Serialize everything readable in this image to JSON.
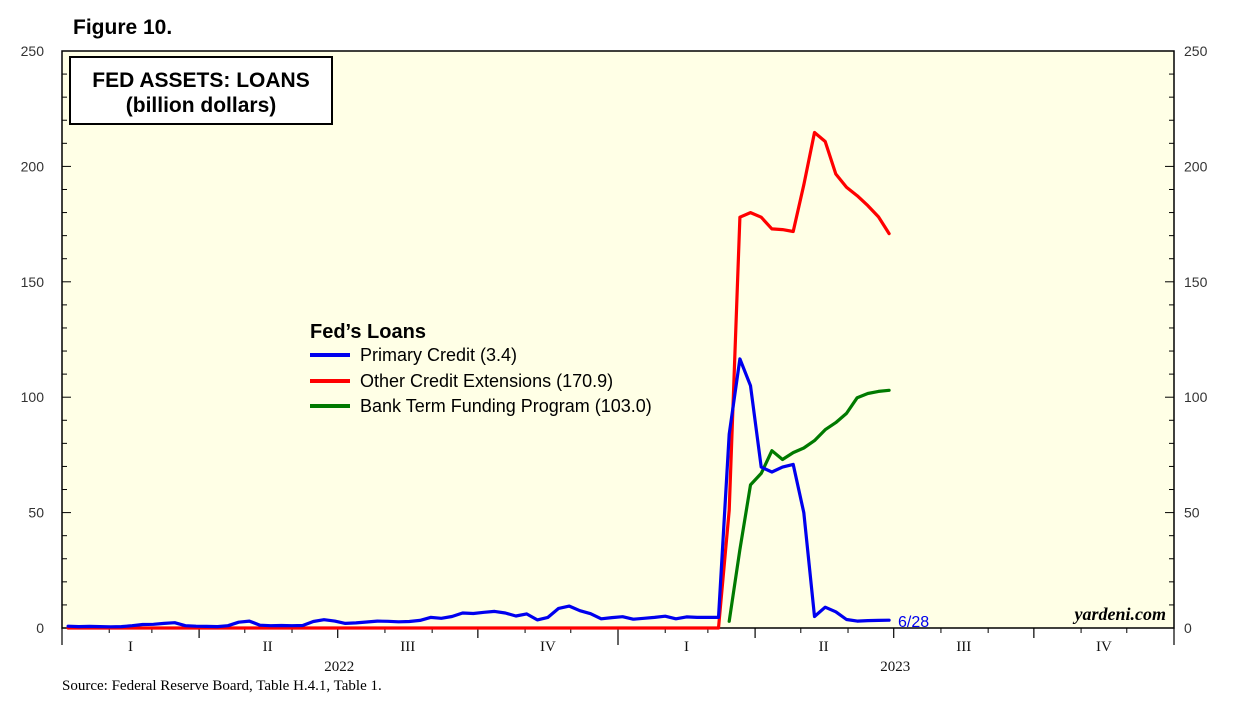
{
  "figure_label": "Figure 10.",
  "source": "Source: Federal Reserve Board, Table H.4.1, Table 1.",
  "brand": "yardeni.com",
  "colors": {
    "plot_background": "#ffffe6",
    "primary_credit": "#0000ee",
    "other_credit": "#ff0000",
    "btfp": "#007a00"
  },
  "chart_data": {
    "type": "line",
    "title": "FED ASSETS: LOANS",
    "subtitle": "(billion dollars)",
    "ylim": [
      0,
      250
    ],
    "y_ticks": [
      0,
      50,
      100,
      150,
      200,
      250
    ],
    "x_range": [
      "2022-01-01",
      "2023-12-31"
    ],
    "quarter_labels": [
      "I",
      "II",
      "III",
      "IV",
      "I",
      "II",
      "III",
      "IV"
    ],
    "year_labels": [
      "2022",
      "2023"
    ],
    "legend_title": "Fed’s Loans",
    "legend_position": "center-left",
    "end_label": "6/28",
    "series": [
      {
        "name": "Primary Credit (3.4)",
        "color_key": "primary_credit",
        "points": [
          [
            "2022-01-05",
            0.8
          ],
          [
            "2022-01-12",
            0.6
          ],
          [
            "2022-01-19",
            0.7
          ],
          [
            "2022-01-26",
            0.6
          ],
          [
            "2022-02-02",
            0.5
          ],
          [
            "2022-02-09",
            0.6
          ],
          [
            "2022-02-16",
            1.0
          ],
          [
            "2022-02-23",
            1.5
          ],
          [
            "2022-03-02",
            1.6
          ],
          [
            "2022-03-09",
            2.0
          ],
          [
            "2022-03-16",
            2.3
          ],
          [
            "2022-03-23",
            1.0
          ],
          [
            "2022-03-30",
            0.8
          ],
          [
            "2022-04-06",
            0.7
          ],
          [
            "2022-04-13",
            0.6
          ],
          [
            "2022-04-20",
            1.0
          ],
          [
            "2022-04-27",
            2.5
          ],
          [
            "2022-05-04",
            3.0
          ],
          [
            "2022-05-11",
            1.2
          ],
          [
            "2022-05-18",
            1.0
          ],
          [
            "2022-05-25",
            1.1
          ],
          [
            "2022-06-01",
            1.0
          ],
          [
            "2022-06-08",
            1.1
          ],
          [
            "2022-06-15",
            2.8
          ],
          [
            "2022-06-22",
            3.6
          ],
          [
            "2022-06-29",
            3.0
          ],
          [
            "2022-07-06",
            2.0
          ],
          [
            "2022-07-13",
            2.2
          ],
          [
            "2022-07-20",
            2.6
          ],
          [
            "2022-07-27",
            3.0
          ],
          [
            "2022-08-03",
            2.9
          ],
          [
            "2022-08-10",
            2.7
          ],
          [
            "2022-08-17",
            2.8
          ],
          [
            "2022-08-24",
            3.3
          ],
          [
            "2022-08-31",
            4.6
          ],
          [
            "2022-09-07",
            4.2
          ],
          [
            "2022-09-14",
            5.0
          ],
          [
            "2022-09-21",
            6.5
          ],
          [
            "2022-09-28",
            6.3
          ],
          [
            "2022-10-05",
            6.8
          ],
          [
            "2022-10-12",
            7.2
          ],
          [
            "2022-10-19",
            6.5
          ],
          [
            "2022-10-26",
            5.2
          ],
          [
            "2022-11-02",
            6.1
          ],
          [
            "2022-11-09",
            3.5
          ],
          [
            "2022-11-16",
            4.6
          ],
          [
            "2022-11-23",
            8.5
          ],
          [
            "2022-11-30",
            9.5
          ],
          [
            "2022-12-07",
            7.5
          ],
          [
            "2022-12-14",
            6.2
          ],
          [
            "2022-12-21",
            4.0
          ],
          [
            "2022-12-28",
            4.5
          ],
          [
            "2023-01-04",
            4.9
          ],
          [
            "2023-01-11",
            3.8
          ],
          [
            "2023-01-18",
            4.2
          ],
          [
            "2023-01-25",
            4.6
          ],
          [
            "2023-02-01",
            5.1
          ],
          [
            "2023-02-08",
            4.0
          ],
          [
            "2023-02-15",
            4.8
          ],
          [
            "2023-02-22",
            4.6
          ],
          [
            "2023-03-01",
            4.6
          ],
          [
            "2023-03-08",
            4.6
          ],
          [
            "2023-03-15",
            84.0
          ],
          [
            "2023-03-22",
            116.6
          ],
          [
            "2023-03-29",
            105.0
          ],
          [
            "2023-04-05",
            69.7
          ],
          [
            "2023-04-12",
            67.6
          ],
          [
            "2023-04-19",
            69.7
          ],
          [
            "2023-04-26",
            70.9
          ],
          [
            "2023-05-03",
            50.0
          ],
          [
            "2023-05-10",
            5.0
          ],
          [
            "2023-05-17",
            9.0
          ],
          [
            "2023-05-24",
            7.0
          ],
          [
            "2023-05-31",
            3.7
          ],
          [
            "2023-06-07",
            3.0
          ],
          [
            "2023-06-14",
            3.2
          ],
          [
            "2023-06-21",
            3.3
          ],
          [
            "2023-06-28",
            3.4
          ]
        ]
      },
      {
        "name": "Other Credit Extensions (170.9)",
        "color_key": "other_credit",
        "points": [
          [
            "2022-01-05",
            0.0
          ],
          [
            "2023-03-08",
            0.0
          ],
          [
            "2023-03-15",
            51.0
          ],
          [
            "2023-03-22",
            178.0
          ],
          [
            "2023-03-29",
            180.0
          ],
          [
            "2023-04-05",
            178.0
          ],
          [
            "2023-04-12",
            172.9
          ],
          [
            "2023-04-19",
            172.6
          ],
          [
            "2023-04-26",
            171.8
          ],
          [
            "2023-05-03",
            192.0
          ],
          [
            "2023-05-10",
            214.7
          ],
          [
            "2023-05-17",
            210.8
          ],
          [
            "2023-05-24",
            196.7
          ],
          [
            "2023-05-31",
            191.0
          ],
          [
            "2023-06-07",
            187.3
          ],
          [
            "2023-06-14",
            183.0
          ],
          [
            "2023-06-21",
            178.1
          ],
          [
            "2023-06-28",
            170.9
          ]
        ]
      },
      {
        "name": "Bank Term Funding Program (103.0)",
        "color_key": "btfp",
        "points": [
          [
            "2023-03-15",
            2.9
          ],
          [
            "2023-03-22",
            34.0
          ],
          [
            "2023-03-29",
            62.0
          ],
          [
            "2023-04-05",
            67.0
          ],
          [
            "2023-04-12",
            76.8
          ],
          [
            "2023-04-19",
            73.0
          ],
          [
            "2023-04-26",
            76.0
          ],
          [
            "2023-05-03",
            78.0
          ],
          [
            "2023-05-10",
            81.2
          ],
          [
            "2023-05-17",
            85.9
          ],
          [
            "2023-05-24",
            89.0
          ],
          [
            "2023-05-31",
            93.0
          ],
          [
            "2023-06-07",
            99.8
          ],
          [
            "2023-06-14",
            101.6
          ],
          [
            "2023-06-21",
            102.5
          ],
          [
            "2023-06-28",
            103.0
          ]
        ]
      }
    ]
  }
}
